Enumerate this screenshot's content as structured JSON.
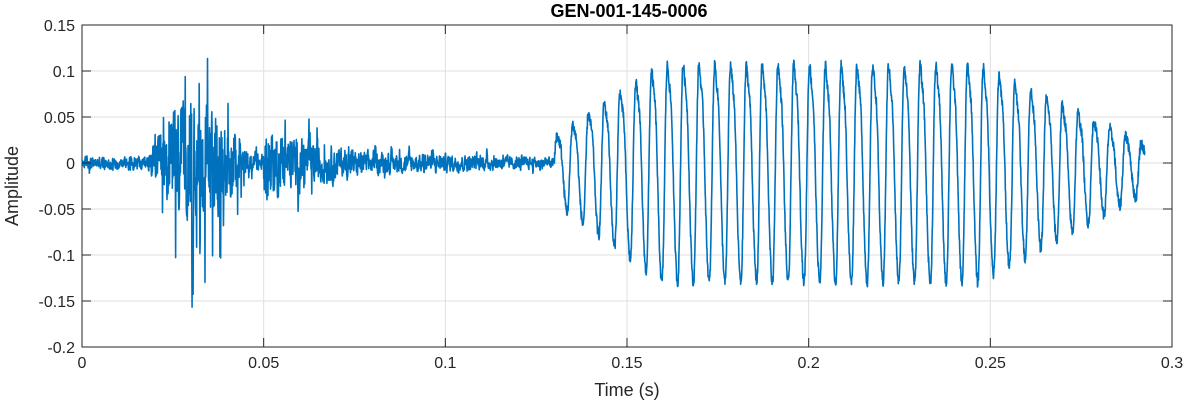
{
  "chart_data": {
    "type": "line",
    "title": "GEN-001-145-0006",
    "xlabel": "Time (s)",
    "ylabel": "Amplitude",
    "xlim": [
      0,
      0.3
    ],
    "ylim": [
      -0.2,
      0.15
    ],
    "grid": true,
    "xticks": [
      0,
      0.05,
      0.1,
      0.15,
      0.2,
      0.25,
      0.3
    ],
    "xtick_labels": [
      "0",
      "0.05",
      "0.1",
      "0.15",
      "0.2",
      "0.25",
      "0.3"
    ],
    "yticks": [
      -0.2,
      -0.15,
      -0.1,
      -0.05,
      0,
      0.05,
      0.1,
      0.15
    ],
    "ytick_labels": [
      "-0.2",
      "-0.15",
      "-0.1",
      "-0.05",
      "0",
      "0.05",
      "0.1",
      "0.15"
    ],
    "series": [
      {
        "color": "#0072BD",
        "x_range": [
          0,
          0.2925
        ],
        "segments": [
          {
            "t": [
              0.0,
              0.018
            ],
            "type": "noise",
            "amp": 0.012
          },
          {
            "t": [
              0.018,
              0.05
            ],
            "type": "burst",
            "amp_max": 0.15,
            "amp_min": -0.183
          },
          {
            "t": [
              0.05,
              0.075
            ],
            "type": "noise",
            "amp": 0.06
          },
          {
            "t": [
              0.075,
              0.13
            ],
            "type": "noise",
            "amp": 0.02
          },
          {
            "t": [
              0.13,
              0.2925
            ],
            "type": "voiced",
            "freq_hz": 230,
            "amp_max": 0.148,
            "amp_min": -0.157
          }
        ]
      }
    ]
  }
}
